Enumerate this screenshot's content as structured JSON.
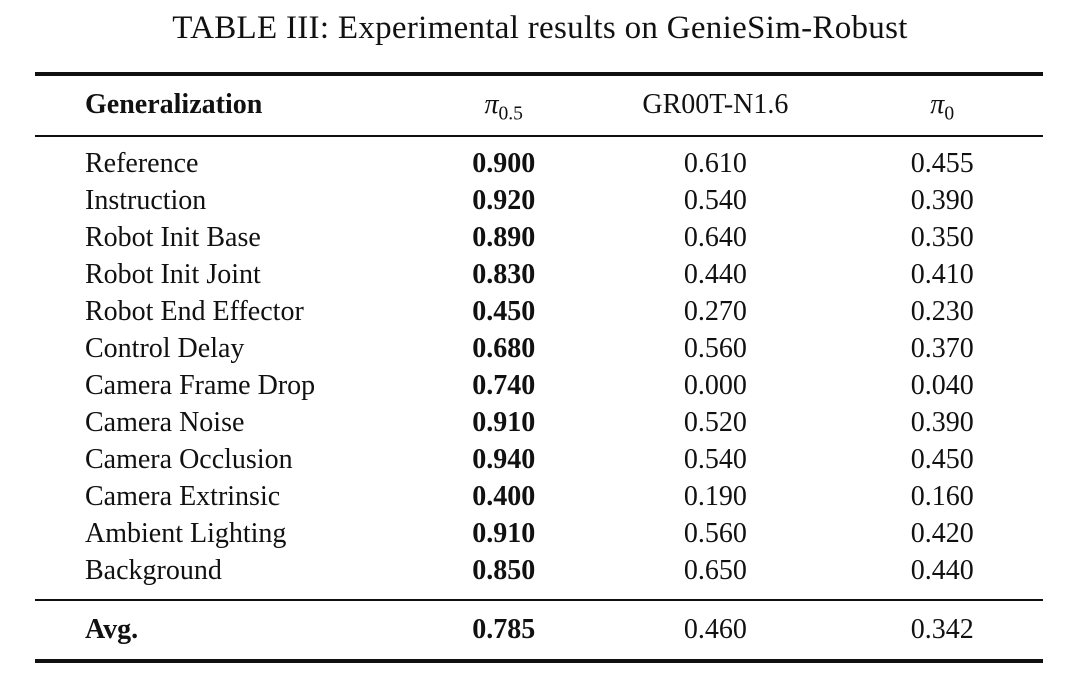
{
  "title": "TABLE III: Experimental results on GenieSim-Robust",
  "table": {
    "headers": [
      {
        "label": "Generalization"
      },
      {
        "base": "π",
        "sub": "0.5"
      },
      {
        "label": "GR00T-N1.6"
      },
      {
        "base": "π",
        "sub": "0"
      }
    ],
    "rows": [
      {
        "label": "Reference",
        "pi05": "0.900",
        "groot": "0.610",
        "pi0": "0.455"
      },
      {
        "label": "Instruction",
        "pi05": "0.920",
        "groot": "0.540",
        "pi0": "0.390"
      },
      {
        "label": "Robot Init Base",
        "pi05": "0.890",
        "groot": "0.640",
        "pi0": "0.350"
      },
      {
        "label": "Robot Init Joint",
        "pi05": "0.830",
        "groot": "0.440",
        "pi0": "0.410"
      },
      {
        "label": "Robot End Effector",
        "pi05": "0.450",
        "groot": "0.270",
        "pi0": "0.230"
      },
      {
        "label": "Control Delay",
        "pi05": "0.680",
        "groot": "0.560",
        "pi0": "0.370"
      },
      {
        "label": "Camera Frame Drop",
        "pi05": "0.740",
        "groot": "0.000",
        "pi0": "0.040"
      },
      {
        "label": "Camera Noise",
        "pi05": "0.910",
        "groot": "0.520",
        "pi0": "0.390"
      },
      {
        "label": "Camera Occlusion",
        "pi05": "0.940",
        "groot": "0.540",
        "pi0": "0.450"
      },
      {
        "label": "Camera Extrinsic",
        "pi05": "0.400",
        "groot": "0.190",
        "pi0": "0.160"
      },
      {
        "label": "Ambient Lighting",
        "pi05": "0.910",
        "groot": "0.560",
        "pi0": "0.420"
      },
      {
        "label": "Background",
        "pi05": "0.850",
        "groot": "0.650",
        "pi0": "0.440"
      }
    ],
    "footer": {
      "label": "Avg.",
      "pi05": "0.785",
      "groot": "0.460",
      "pi0": "0.342"
    }
  },
  "colors": {
    "text": "#111111",
    "rule": "#101010",
    "background": "#ffffff"
  }
}
